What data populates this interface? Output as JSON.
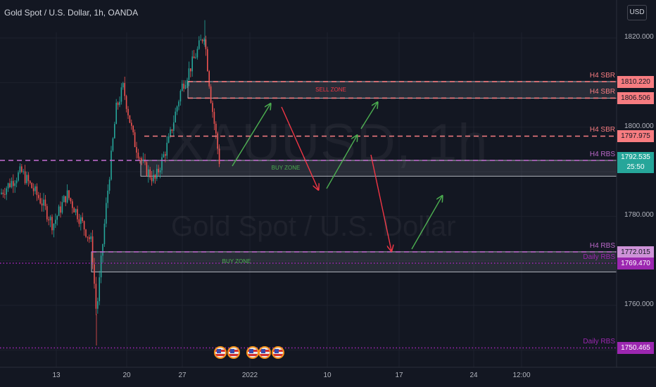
{
  "header": {
    "title": "Gold Spot / U.S. Dollar, 1h, OANDA",
    "currency": "USD"
  },
  "watermark": {
    "symbol": "XAUUSD, 1h",
    "name": "Gold Spot / U.S. Dollar"
  },
  "colors": {
    "background": "#131722",
    "up": "#26a69a",
    "down": "#ef5350",
    "sbr": "#f77c80",
    "rbs": "#ba68c8",
    "daily": "#9c27b0",
    "current": "#26a69a",
    "arrow_up": "#4caf50",
    "arrow_down": "#f23645"
  },
  "chart_data": {
    "type": "candlestick",
    "y_axis": {
      "range": [
        1747,
        1824
      ],
      "ticks": [
        "1820.000",
        "1800.000",
        "1780.000",
        "1760.000"
      ],
      "tick_values": [
        1820,
        1800,
        1780,
        1760
      ]
    },
    "x_axis": {
      "ticks": [
        "13",
        "20",
        "27",
        "2022",
        "10",
        "17",
        "24",
        "12:00"
      ]
    },
    "levels": [
      {
        "label": "H4 SBR",
        "price": "1810.220",
        "value": 1810.22,
        "style": "sbr"
      },
      {
        "label": "H4 SBR",
        "price": "1806.506",
        "value": 1806.506,
        "style": "sbr"
      },
      {
        "label": "H4 SBR",
        "price": "1797.975",
        "value": 1797.975,
        "style": "sbr"
      },
      {
        "label": "H4 RBS",
        "price": "1772.015",
        "value": 1772.015,
        "style": "rbs"
      },
      {
        "label": "Daily RBS",
        "price": "1769.470",
        "value": 1769.47,
        "style": "daily"
      },
      {
        "label": "Daily RBS",
        "price": "1750.465",
        "value": 1750.465,
        "style": "daily"
      }
    ],
    "h4_rbs_upper": {
      "label": "H4 RBS",
      "value": 1792.535
    },
    "current_price": {
      "price": "1792.535",
      "countdown": "25:50",
      "value": 1792.535
    },
    "zones": [
      {
        "label": "SELL ZONE",
        "top": 1810.22,
        "bottom": 1806.506,
        "kind": "sell"
      },
      {
        "label": "BUY ZONE",
        "top": 1792.535,
        "bottom": 1789.0,
        "kind": "buy"
      },
      {
        "label": "BUY ZONE",
        "top": 1772.015,
        "bottom": 1767.5,
        "kind": "buy"
      }
    ]
  }
}
